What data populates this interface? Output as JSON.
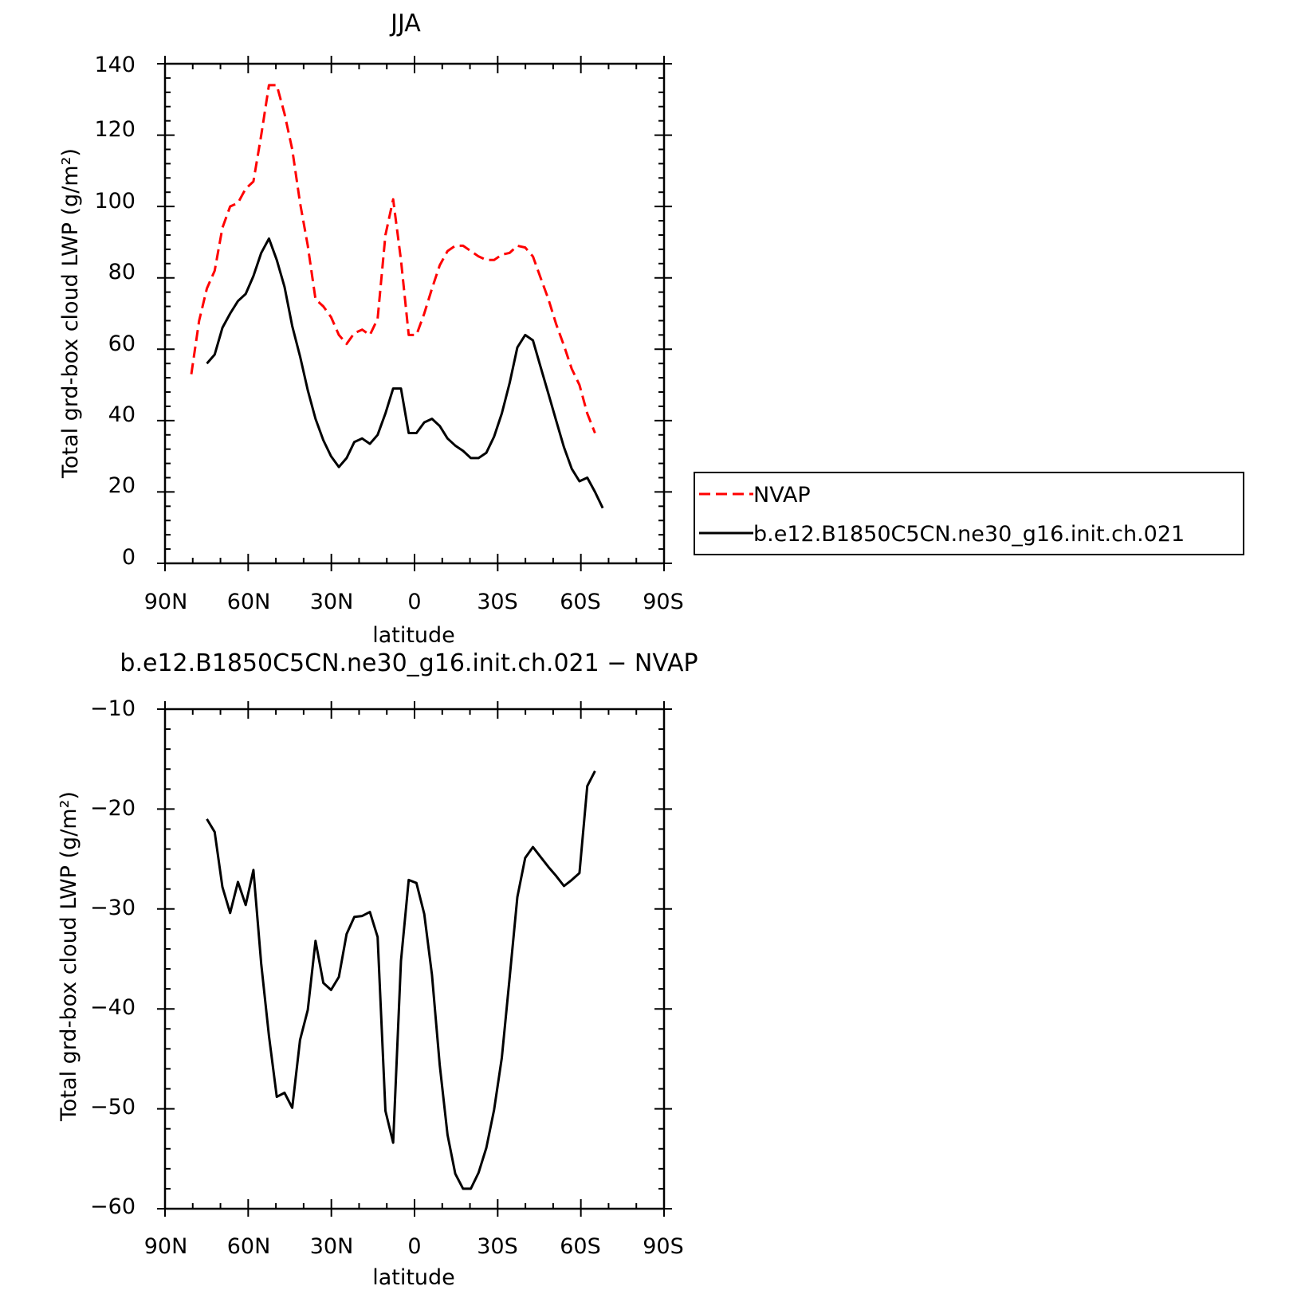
{
  "chart_data": [
    {
      "type": "line",
      "title": "JJA",
      "xlabel": "latitude",
      "ylabel": "Total grd-box cloud LWP (g/m²)",
      "x_ticks": [
        "90N",
        "60N",
        "30N",
        "0",
        "30S",
        "60S",
        "90S"
      ],
      "xlim": [
        90,
        -90
      ],
      "ylim": [
        0,
        140
      ],
      "y_ticks": [
        "0",
        "20",
        "40",
        "60",
        "80",
        "100",
        "120",
        "140"
      ],
      "legend_position": "right",
      "series": [
        {
          "name": "NVAP",
          "color": "#ff0000",
          "dash": "dashed",
          "x": [
            80.5,
            77.7,
            74.9,
            72.1,
            69.3,
            66.5,
            63.7,
            60.9,
            58.1,
            55.3,
            52.5,
            49.7,
            46.9,
            44.1,
            41.3,
            38.5,
            35.7,
            32.9,
            30.1,
            27.3,
            24.5,
            21.7,
            18.9,
            16.1,
            13.3,
            10.5,
            7.7,
            4.9,
            2.1,
            -0.7,
            -3.5,
            -6.3,
            -9.1,
            -11.9,
            -14.7,
            -17.5,
            -20.3,
            -23.1,
            -25.9,
            -28.7,
            -31.5,
            -34.3,
            -37.1,
            -39.9,
            -42.7,
            -45.5,
            -48.3,
            -51.1,
            -53.9,
            -56.7,
            -59.5,
            -62.3,
            -65.1
          ],
          "y": [
            53,
            68,
            77,
            82,
            94,
            100,
            101,
            105,
            107,
            120,
            134,
            134,
            126,
            116,
            101,
            89,
            74,
            72,
            69,
            64,
            61.5,
            64.5,
            65.5,
            64,
            68.5,
            92,
            102,
            85,
            64,
            64,
            70,
            77,
            83.5,
            87.5,
            89,
            89,
            87.5,
            86,
            85,
            85,
            86.5,
            87,
            89,
            88.5,
            86,
            80,
            74,
            67,
            61,
            54.5,
            50,
            42,
            36.5
          ]
        },
        {
          "name": "b.e12.B1850C5CN.ne30_g16.init.ch.021",
          "color": "#000000",
          "dash": "solid",
          "x": [
            74.9,
            72.1,
            69.3,
            66.5,
            63.7,
            60.9,
            58.1,
            55.3,
            52.5,
            49.7,
            46.9,
            44.1,
            41.3,
            38.5,
            35.7,
            32.9,
            30.1,
            27.3,
            24.5,
            21.7,
            18.9,
            16.1,
            13.3,
            10.5,
            7.7,
            4.9,
            2.1,
            -0.7,
            -3.5,
            -6.3,
            -9.1,
            -11.9,
            -14.7,
            -17.5,
            -20.3,
            -23.1,
            -25.9,
            -28.7,
            -31.5,
            -34.3,
            -37.1,
            -39.9,
            -42.7,
            -45.5,
            -48.3,
            -51.1,
            -53.9,
            -56.7,
            -59.5,
            -62.3,
            -65.1,
            -67.9
          ],
          "y": [
            56,
            58.5,
            66,
            70,
            73.5,
            75.5,
            80.5,
            87,
            91,
            85,
            77.5,
            66.5,
            58,
            48.5,
            40.5,
            34.5,
            30,
            27,
            29.5,
            34,
            35,
            33.5,
            36,
            42,
            49,
            49,
            36.5,
            36.5,
            39.5,
            40.5,
            38.5,
            35,
            33,
            31.5,
            29.5,
            29.5,
            31,
            35.5,
            42,
            50.5,
            60.5,
            64,
            62.5,
            55,
            47.5,
            40,
            32.5,
            26.5,
            23,
            24,
            20,
            15.5
          ]
        }
      ]
    },
    {
      "type": "line",
      "title": "b.e12.B1850C5CN.ne30_g16.init.ch.021 − NVAP",
      "xlabel": "latitude",
      "ylabel": "Total grd-box cloud LWP (g/m²)",
      "x_ticks": [
        "90N",
        "60N",
        "30N",
        "0",
        "30S",
        "60S",
        "90S"
      ],
      "xlim": [
        90,
        -90
      ],
      "ylim": [
        -60,
        -10
      ],
      "y_ticks": [
        "−60",
        "−50",
        "−40",
        "−30",
        "−20",
        "−10"
      ],
      "series": [
        {
          "color": "#000000",
          "dash": "solid",
          "x": [
            74.9,
            72.1,
            69.3,
            66.5,
            63.7,
            60.9,
            58.1,
            55.3,
            52.5,
            49.7,
            46.9,
            44.1,
            41.3,
            38.5,
            35.7,
            32.9,
            30.1,
            27.3,
            24.5,
            21.7,
            18.9,
            16.1,
            13.3,
            10.5,
            7.7,
            4.9,
            2.1,
            -0.7,
            -3.5,
            -6.3,
            -9.1,
            -11.9,
            -14.7,
            -17.5,
            -20.3,
            -23.1,
            -25.9,
            -28.7,
            -31.5,
            -34.3,
            -37.1,
            -39.9,
            -42.7,
            -45.5,
            -48.3,
            -51.1,
            -53.9,
            -56.7,
            -59.5,
            -62.3,
            -65.1
          ],
          "y": [
            -21,
            -22.3,
            -27.8,
            -30.4,
            -27.3,
            -29.6,
            -26.1,
            -35.5,
            -42.7,
            -48.8,
            -48.4,
            -49.9,
            -43.1,
            -40.1,
            -33.2,
            -37.4,
            -38.1,
            -36.8,
            -32.5,
            -30.8,
            -30.7,
            -30.3,
            -32.8,
            -50.2,
            -53.4,
            -35.2,
            -27.1,
            -27.4,
            -30.5,
            -36.6,
            -45.6,
            -52.6,
            -56.5,
            -58,
            -58,
            -56.4,
            -53.9,
            -50.1,
            -44.9,
            -36.9,
            -28.8,
            -24.9,
            -23.8,
            -24.8,
            -25.8,
            -26.7,
            -27.7,
            -27.1,
            -26.4,
            -17.7,
            -16.2
          ]
        }
      ]
    }
  ]
}
